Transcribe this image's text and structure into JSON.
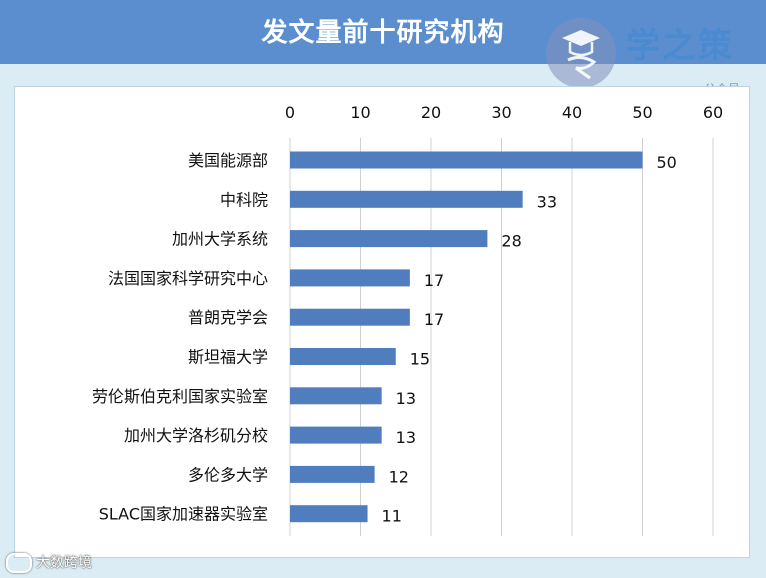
{
  "header": {
    "title": "发文量前十研究机构"
  },
  "logo": {
    "name": "学之策",
    "subtitle": "公众号",
    "icon": "graduation-cap-icon"
  },
  "watermark": {
    "text": "大数跨境",
    "icon": "chat-bubble-icon"
  },
  "colors": {
    "bar": "#4f7dbd",
    "header": "#5b8ecf",
    "background": "#dcecf4",
    "grid": "#d0d0d0"
  },
  "chart_data": {
    "type": "bar",
    "orientation": "horizontal",
    "title": "发文量前十研究机构",
    "categories": [
      "美国能源部",
      "中科院",
      "加州大学系统",
      "法国国家科学研究中心",
      "普朗克学会",
      "斯坦福大学",
      "劳伦斯伯克利国家实验室",
      "加州大学洛杉矶分校",
      "多伦多大学",
      "SLAC国家加速器实验室"
    ],
    "values": [
      50,
      33,
      28,
      17,
      17,
      15,
      13,
      13,
      12,
      11
    ],
    "xlim": [
      0,
      60
    ],
    "ticks": [
      0,
      10,
      20,
      30,
      40,
      50,
      60
    ],
    "axis_position": "top",
    "grid": true,
    "legend": "none",
    "data_labels": true
  }
}
